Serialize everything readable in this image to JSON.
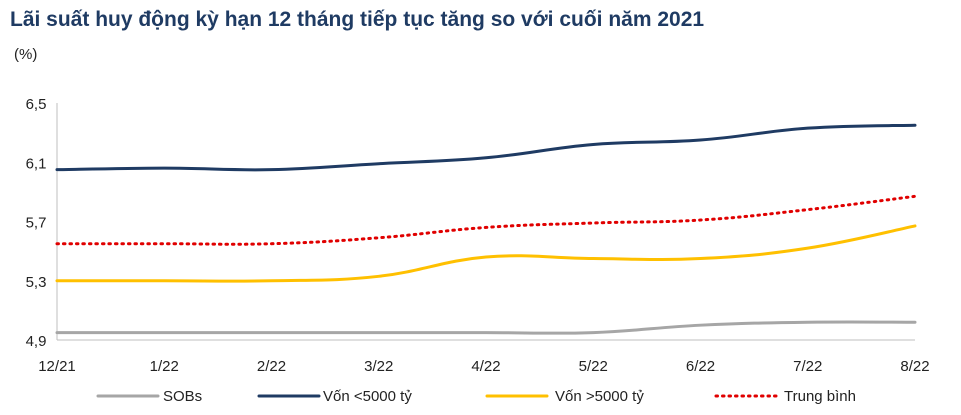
{
  "header": {
    "title": "Lãi suất huy động kỳ hạn 12 tháng tiếp tục tăng so với cuối năm 2021",
    "unit": "(%)"
  },
  "chart_data": {
    "type": "line",
    "title": "Lãi suất huy động kỳ hạn 12 tháng tiếp tục tăng so với cuối năm 2021",
    "ylabel": "(%)",
    "xlabel": "",
    "categories": [
      "12/21",
      "1/22",
      "2/22",
      "3/22",
      "4/22",
      "5/22",
      "6/22",
      "7/22",
      "8/22"
    ],
    "ylim": [
      4.9,
      6.5
    ],
    "yticks": [
      "6,5",
      "6,1",
      "5,7",
      "5,3",
      "4,9"
    ],
    "ytick_values": [
      6.5,
      6.1,
      5.7,
      5.3,
      4.9
    ],
    "grid": false,
    "legend_position": "bottom",
    "series": [
      {
        "name": "SOBs",
        "color": "#a6a6a6",
        "style": "solid",
        "values": [
          4.95,
          4.95,
          4.95,
          4.95,
          4.95,
          4.95,
          5.0,
          5.02,
          5.02
        ]
      },
      {
        "name": "Vốn <5000 tỷ",
        "color": "#1f3b63",
        "style": "solid",
        "values": [
          6.05,
          6.06,
          6.05,
          6.09,
          6.13,
          6.22,
          6.25,
          6.33,
          6.35
        ]
      },
      {
        "name": "Vốn >5000 tỷ",
        "color": "#ffc000",
        "style": "solid",
        "values": [
          5.3,
          5.3,
          5.3,
          5.33,
          5.46,
          5.45,
          5.45,
          5.52,
          5.67
        ]
      },
      {
        "name": "Trung bình",
        "color": "#e00000",
        "style": "dotted",
        "values": [
          5.55,
          5.55,
          5.55,
          5.59,
          5.66,
          5.69,
          5.71,
          5.78,
          5.87
        ]
      }
    ]
  }
}
